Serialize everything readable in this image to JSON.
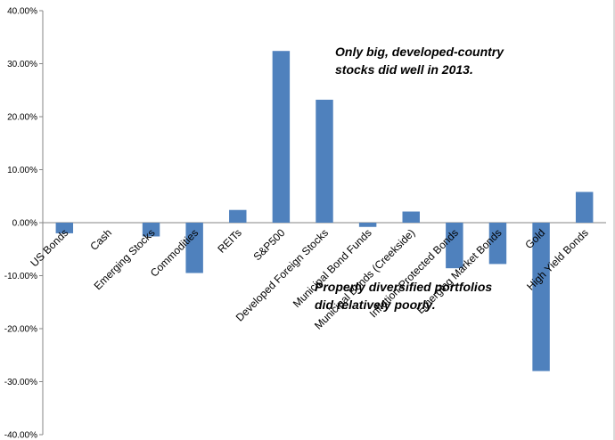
{
  "chart_data": {
    "type": "bar",
    "categories": [
      "US Bonds",
      "Cash",
      "Emerging Stocks",
      "Commodities",
      "REITs",
      "S&P500",
      "Developed Foreign Stocks",
      "Municipal Bond Funds",
      "Municipal Bonds (Creekside)",
      "Inflation-Protected Bonds",
      "Emerging Market Bonds",
      "Gold",
      "High Yield Bonds"
    ],
    "values": [
      -2.0,
      0.0,
      -2.6,
      -9.5,
      2.4,
      32.4,
      23.2,
      -0.8,
      2.1,
      -8.6,
      -7.8,
      -28.0,
      5.8
    ],
    "yticks": [
      "40.00%",
      "30.00%",
      "20.00%",
      "10.00%",
      "0.00%",
      "-10.00%",
      "-20.00%",
      "-30.00%",
      "-40.00%"
    ],
    "ylim": [
      -40,
      40
    ],
    "grid": false,
    "bar_color": "#4f81bd",
    "annotations": [
      [
        "Only big, developed-country",
        "stocks did well in 2013."
      ],
      [
        "Properly diversified portfolios",
        "did relatively poorly."
      ]
    ]
  }
}
